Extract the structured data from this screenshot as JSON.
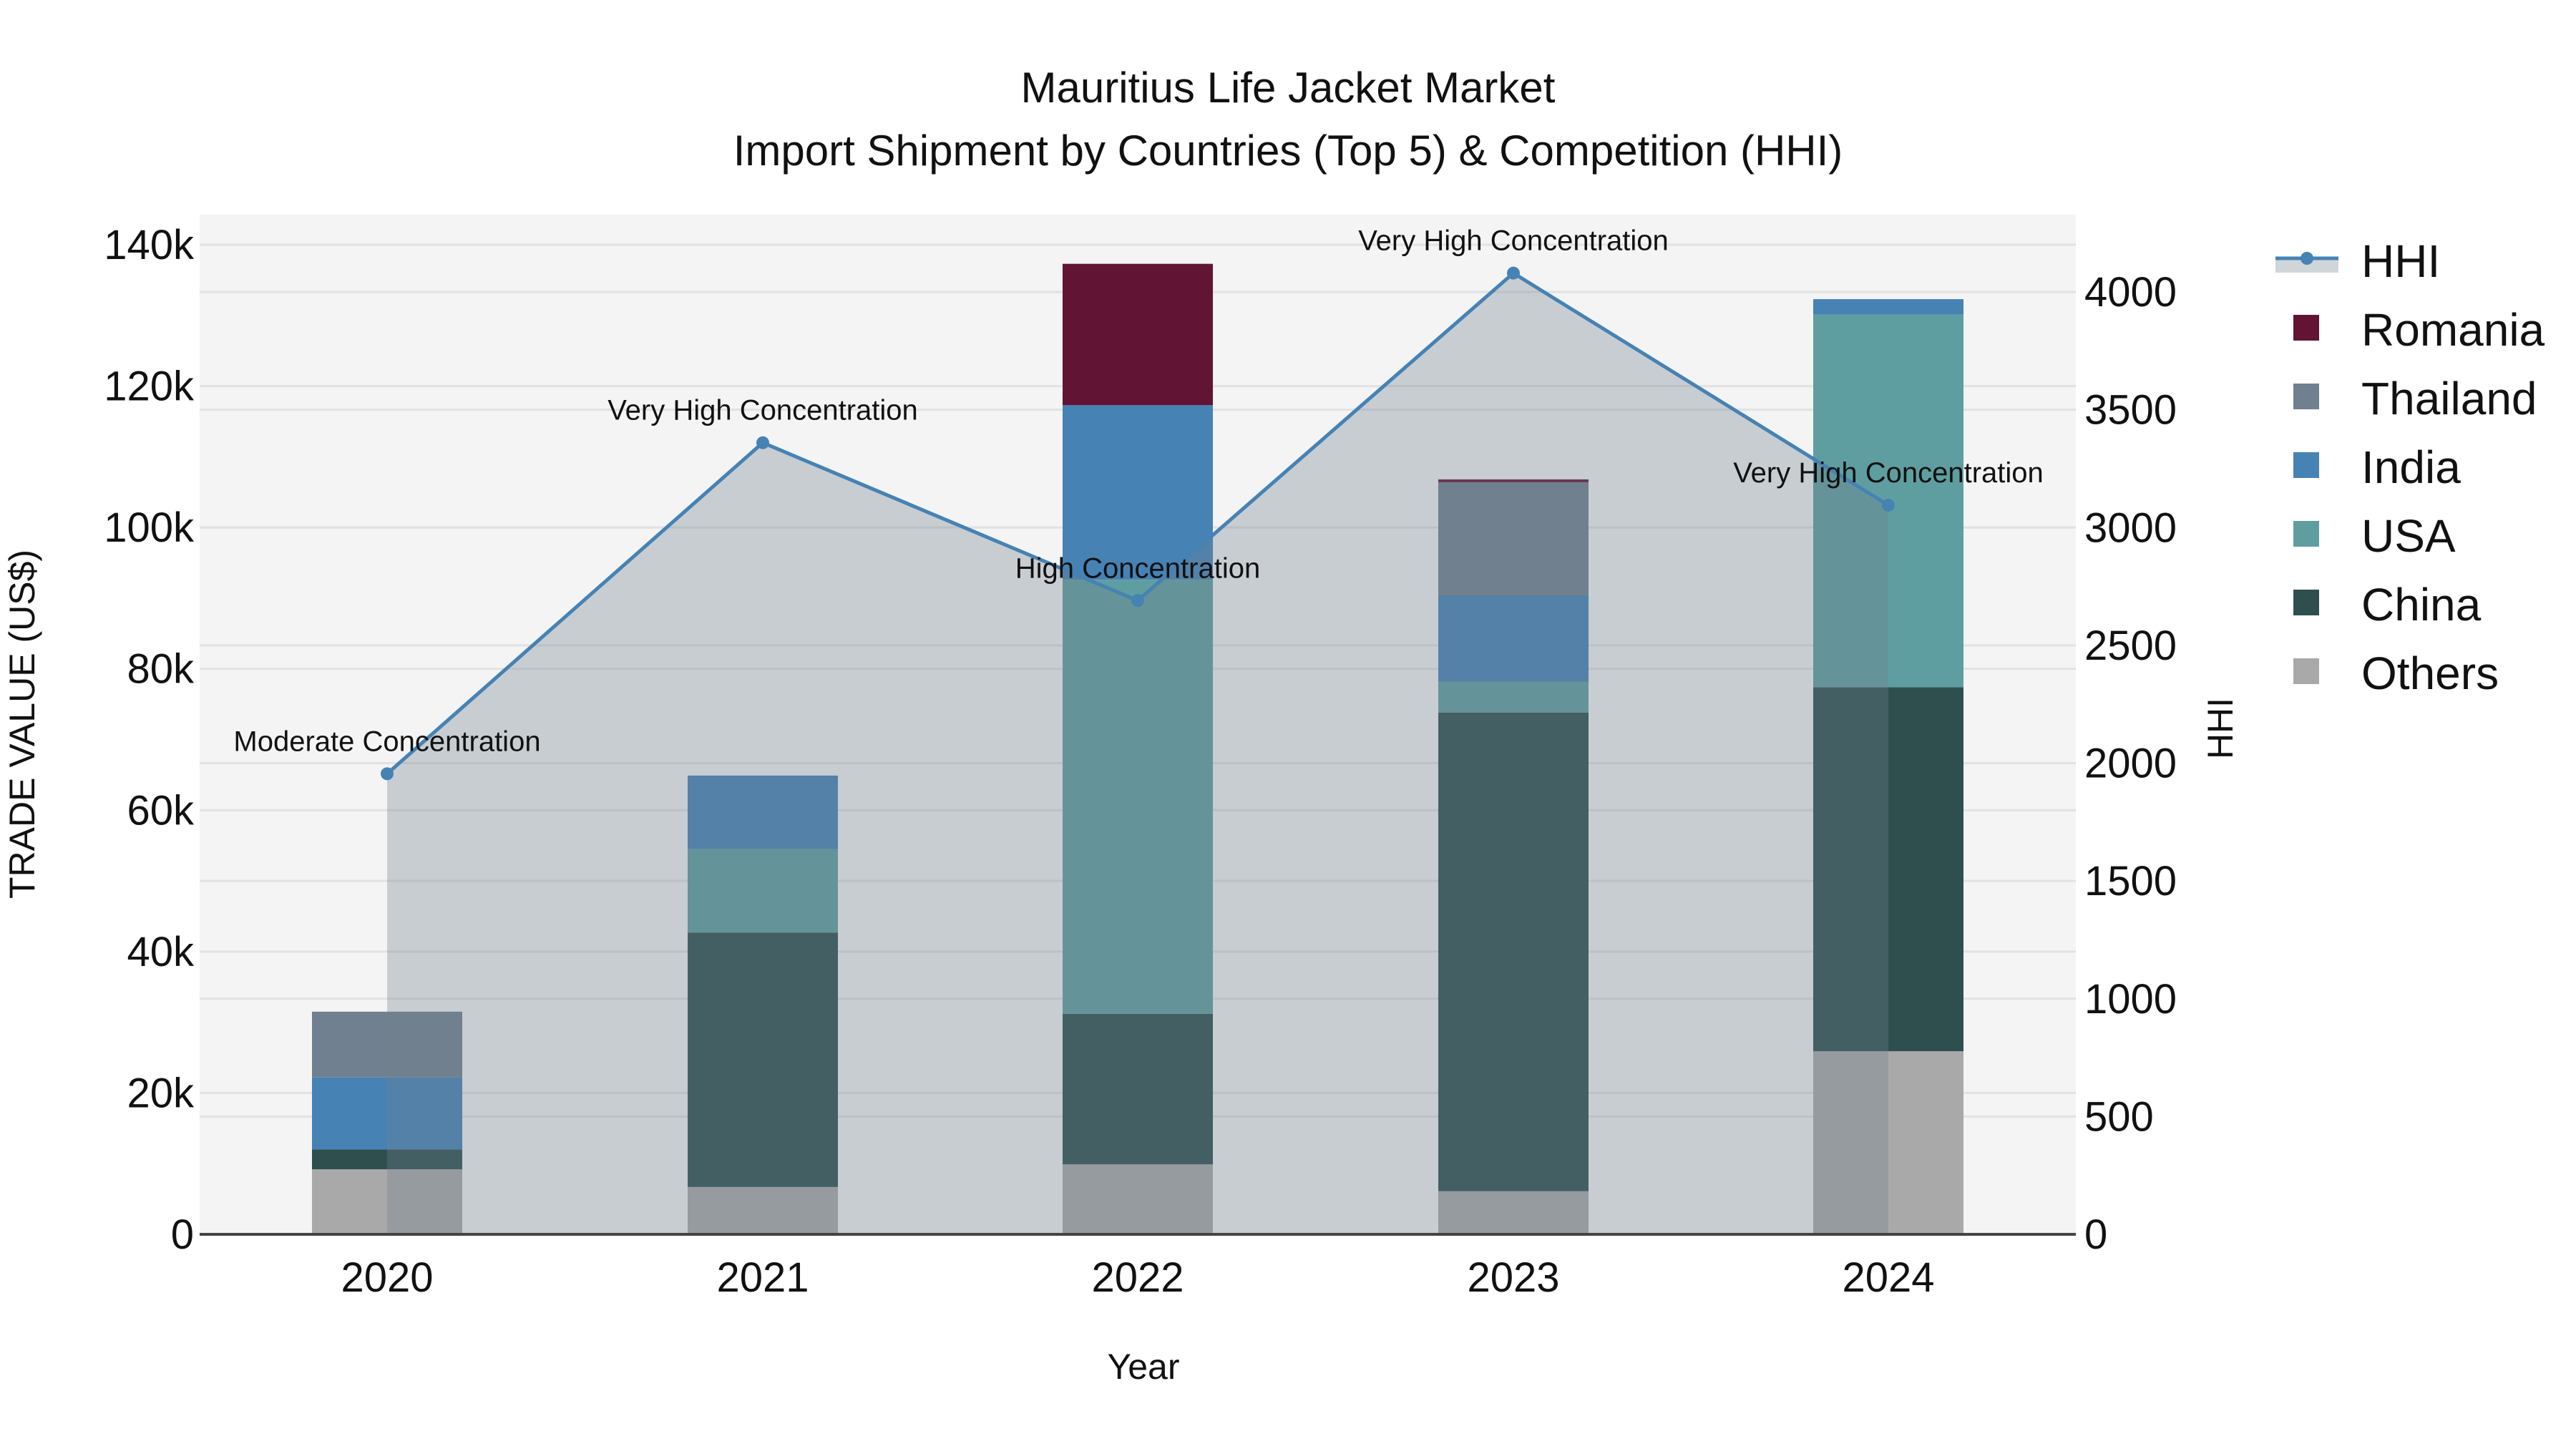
{
  "title": {
    "line1": "Mauritius Life Jacket Market",
    "line2": "Import Shipment by Countries (Top 5) & Competition (HHI)"
  },
  "colors": {
    "plot_bg": "#f4f4f4",
    "grid": "#e2e2e2",
    "Romania": "#611434",
    "Thailand": "#708090",
    "India": "#4682b4",
    "USA": "#5f9ea0",
    "China": "#2f4f4f",
    "Others": "#a9a9a9",
    "hhi_line": "#4682b4",
    "hhi_fill": "#708090"
  },
  "chart_data": {
    "type": "bar",
    "stacked": true,
    "title": "Mauritius Life Jacket Market — Import Shipment by Countries (Top 5) & Competition (HHI)",
    "xlabel": "Year",
    "ylabel": "TRADE VALUE (US$)",
    "y2label": "HHI",
    "categories": [
      "2020",
      "2021",
      "2022",
      "2023",
      "2024"
    ],
    "ylim": [
      0,
      145000
    ],
    "y2lim": [
      0,
      4350
    ],
    "yticks": [
      "0",
      "20k",
      "40k",
      "60k",
      "80k",
      "100k",
      "120k",
      "140k"
    ],
    "ytick_values": [
      0,
      20000,
      40000,
      60000,
      80000,
      100000,
      120000,
      140000
    ],
    "y2ticks": [
      "0",
      "500",
      "1000",
      "1500",
      "2000",
      "2500",
      "3000",
      "3500",
      "4000"
    ],
    "y2tick_values": [
      0,
      500,
      1000,
      1500,
      2000,
      2500,
      3000,
      3500,
      4000
    ],
    "grid": true,
    "legend_position": "right",
    "series": [
      {
        "name": "Others",
        "type": "bar",
        "values": [
          9200,
          6700,
          9900,
          6100,
          25900
        ]
      },
      {
        "name": "China",
        "type": "bar",
        "values": [
          2800,
          36000,
          21300,
          67700,
          51500
        ]
      },
      {
        "name": "USA",
        "type": "bar",
        "values": [
          0,
          11800,
          61400,
          4400,
          52700
        ]
      },
      {
        "name": "India",
        "type": "bar",
        "values": [
          10200,
          10400,
          24700,
          12200,
          2200
        ]
      },
      {
        "name": "Thailand",
        "type": "bar",
        "values": [
          9300,
          0,
          0,
          16000,
          0
        ]
      },
      {
        "name": "Romania",
        "type": "bar",
        "values": [
          0,
          0,
          20000,
          400,
          0
        ]
      },
      {
        "name": "HHI",
        "type": "line+area",
        "axis": "y2",
        "values": [
          1955,
          3360,
          2690,
          4080,
          3095
        ]
      }
    ],
    "annotations": [
      {
        "x": "2020",
        "text": "Moderate Concentration"
      },
      {
        "x": "2021",
        "text": "Very High Concentration"
      },
      {
        "x": "2022",
        "text": "High Concentration"
      },
      {
        "x": "2023",
        "text": "Very High Concentration"
      },
      {
        "x": "2024",
        "text": "Very High Concentration"
      }
    ]
  },
  "legend": {
    "items": [
      "HHI",
      "Romania",
      "Thailand",
      "India",
      "USA",
      "China",
      "Others"
    ]
  }
}
